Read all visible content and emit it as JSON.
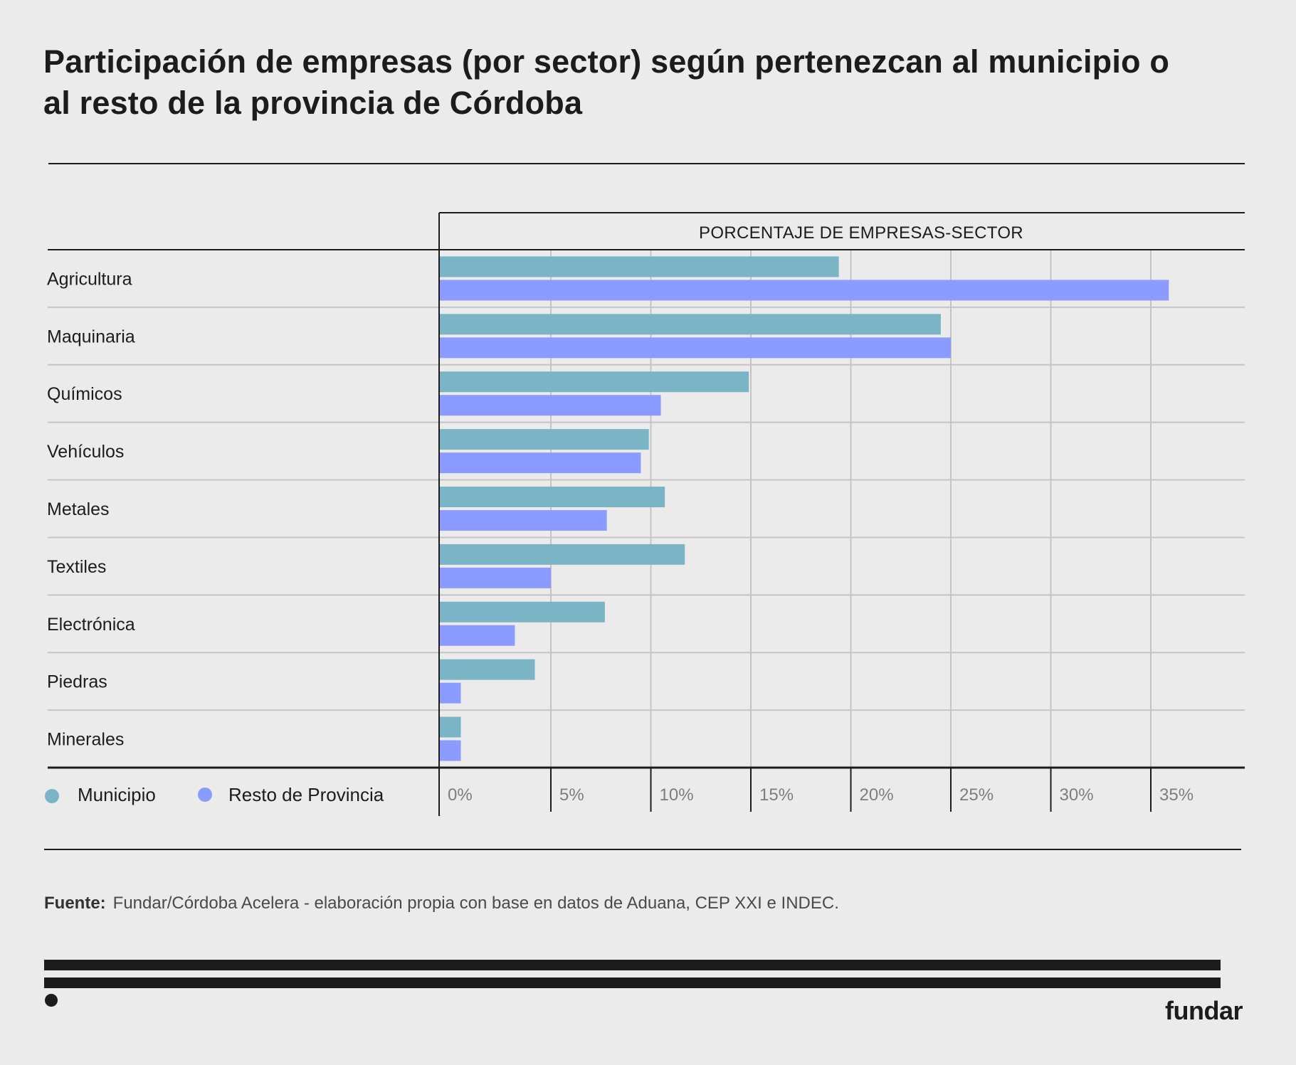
{
  "title": "Participación de empresas (por sector) según pertenezcan al municipio o al resto de la provincia de Córdoba",
  "colors": {
    "background": "#ebebeb",
    "municipio": "#7bb5c5",
    "resto": "#8c9bff",
    "text": "#1c1c1c",
    "grid": "#c4c4c4",
    "tick_text": "#7d7d7d"
  },
  "chart_data": {
    "type": "bar",
    "orientation": "horizontal",
    "title": "Participación de empresas (por sector) según pertenezcan al municipio o al resto de la provincia de Córdoba",
    "header": "PORCENTAJE DE EMPRESAS-SECTOR",
    "xlabel": "PORCENTAJE DE EMPRESAS-SECTOR",
    "ylabel": "",
    "categories": [
      "Agricultura",
      "Maquinaria",
      "Químicos",
      "Vehículos",
      "Metales",
      "Textiles",
      "Electrónica",
      "Piedras",
      "Minerales"
    ],
    "series": [
      {
        "name": "Municipio",
        "color": "#7bb5c5",
        "values": [
          19.4,
          24.5,
          14.9,
          9.9,
          10.7,
          11.7,
          7.7,
          4.2,
          0.5
        ]
      },
      {
        "name": "Resto de Provincia",
        "color": "#8c9bff",
        "values": [
          35.9,
          25.0,
          10.5,
          9.5,
          7.8,
          5.0,
          3.2,
          0.5,
          0.5
        ]
      }
    ],
    "xticks": [
      0,
      5,
      10,
      15,
      20,
      25,
      30,
      35
    ],
    "xtick_labels": [
      "0%",
      "5%",
      "10%",
      "15%",
      "20%",
      "25%",
      "30%",
      "35%"
    ],
    "xlim": [
      0,
      39
    ],
    "grid": true,
    "legend_position": "bottom-left"
  },
  "legend": [
    {
      "label": "Municipio"
    },
    {
      "label": "Resto de Provincia"
    }
  ],
  "source": {
    "label": "Fuente:",
    "text": "Fundar/Córdoba Acelera - elaboración propia con base en datos de Aduana, CEP XXI e INDEC."
  },
  "logo": "fundar"
}
